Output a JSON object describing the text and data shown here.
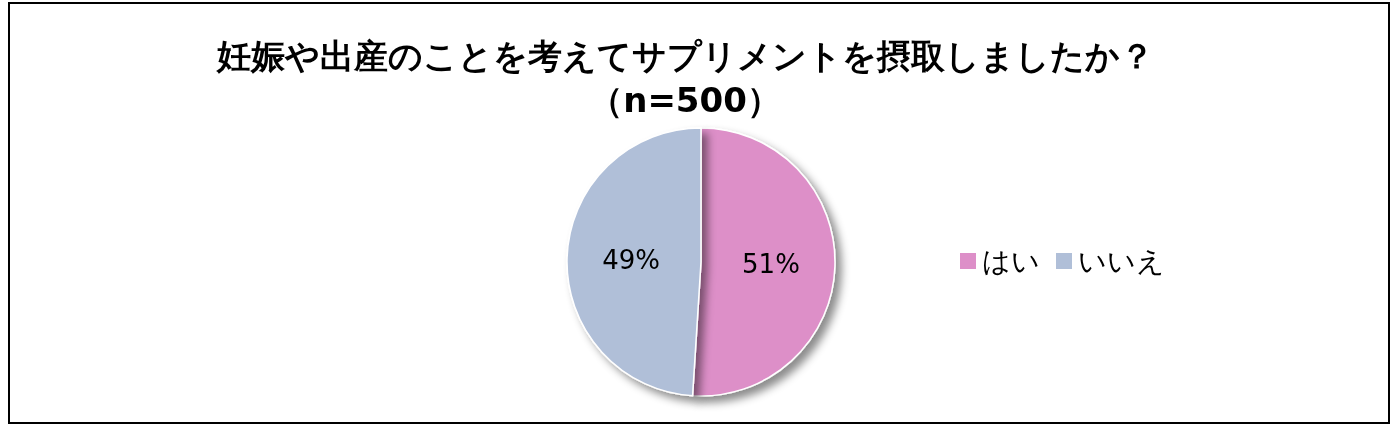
{
  "chart_data": {
    "type": "pie",
    "title": "妊娠や出産のことを考えてサプリメントを摂取しましたか？",
    "subtitle": "（n=500）",
    "categories": [
      "はい",
      "いいえ"
    ],
    "values": [
      51,
      49
    ],
    "colors": [
      "#dd8fc8",
      "#b0bfd8"
    ],
    "value_labels": [
      "51%",
      "49%"
    ],
    "legend": "right"
  }
}
